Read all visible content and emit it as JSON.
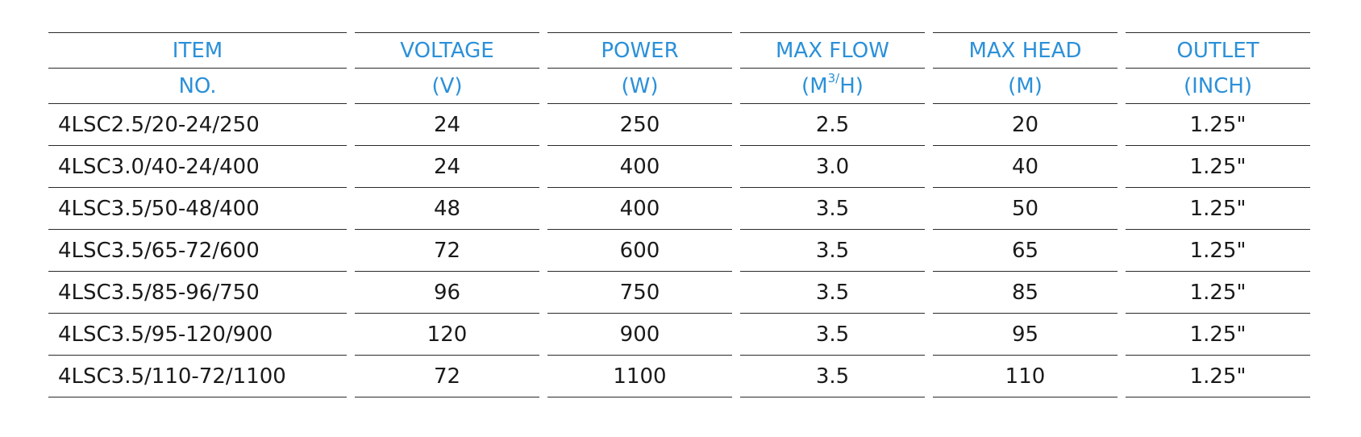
{
  "header": {
    "row1": [
      "ITEM",
      "VOLTAGE",
      "POWER",
      "MAX FLOW",
      "MAX HEAD",
      "OUTLET"
    ],
    "row2": {
      "item": "NO.",
      "voltage": "(V)",
      "power": "(W)",
      "flow_prefix": "(M",
      "flow_sup": "3/",
      "flow_suffix": "H)",
      "head": "(M)",
      "outlet": "(INCH)"
    }
  },
  "rows": [
    [
      "4LSC2.5/20-24/250",
      "24",
      "250",
      "2.5",
      "20",
      "1.25\""
    ],
    [
      "4LSC3.0/40-24/400",
      "24",
      "400",
      "3.0",
      "40",
      "1.25\""
    ],
    [
      "4LSC3.5/50-48/400",
      "48",
      "400",
      "3.5",
      "50",
      "1.25\""
    ],
    [
      "4LSC3.5/65-72/600",
      "72",
      "600",
      "3.5",
      "65",
      "1.25\""
    ],
    [
      "4LSC3.5/85-96/750",
      "96",
      "750",
      "3.5",
      "85",
      "1.25\""
    ],
    [
      "4LSC3.5/95-120/900",
      "120",
      "900",
      "3.5",
      "95",
      "1.25\""
    ],
    [
      "4LSC3.5/110-72/1100",
      "72",
      "1100",
      "3.5",
      "110",
      "1.25\""
    ]
  ],
  "colors": {
    "header_text": "#2b90d9",
    "body_text": "#1a1a1a",
    "rule": "#2a2a2a"
  }
}
